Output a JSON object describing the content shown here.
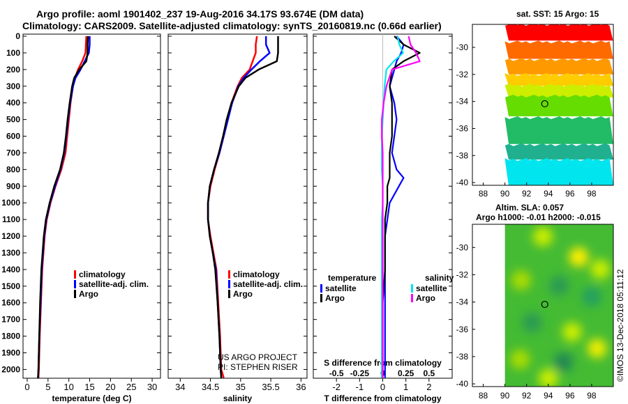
{
  "header": {
    "title_line1": "Argo profile: aoml 1901402_237 19-Aug-2016 34.17S 93.674E (DM data)",
    "title_line2": "Climatology: CARS2009. Satellite-adjusted climatology: synTS_20160819.nc (0.66d earlier)"
  },
  "depth_axis": {
    "ticks": [
      0,
      100,
      200,
      300,
      400,
      500,
      600,
      700,
      800,
      900,
      1000,
      1100,
      1200,
      1300,
      1400,
      1500,
      1600,
      1700,
      1800,
      1900,
      2000
    ]
  },
  "colors": {
    "climatology": "#ff0000",
    "satellite": "#0000ff",
    "argo": "#000000",
    "salt_sat": "#00e5ee",
    "salt_argo": "#ff00ff"
  },
  "chart_data": [
    {
      "type": "line",
      "name": "temperature",
      "xlabel": "temperature (deg C)",
      "ylabel": "depth",
      "xlim": [
        -1,
        32
      ],
      "ylim": [
        2060,
        0
      ],
      "xticks": [
        0,
        5,
        10,
        15,
        20,
        25,
        30
      ],
      "legend": [
        "climatology",
        "satellite-adj. clim.",
        "Argo"
      ],
      "series": [
        {
          "name": "climatology",
          "depth": [
            0,
            50,
            100,
            150,
            200,
            250,
            300,
            400,
            500,
            600,
            700,
            800,
            900,
            1000,
            1100,
            1200,
            1400,
            1600,
            1800,
            2000,
            2050
          ],
          "values": [
            14.2,
            14.1,
            14.0,
            13.2,
            12.2,
            11.5,
            11.0,
            10.4,
            10.0,
            9.6,
            9.2,
            8.2,
            6.8,
            5.6,
            4.7,
            4.2,
            3.6,
            3.3,
            3.0,
            2.8,
            2.7
          ]
        },
        {
          "name": "satellite-adj. clim.",
          "depth": [
            0,
            50,
            100,
            150,
            200,
            250,
            300,
            400,
            500,
            600,
            700,
            800,
            900,
            1000,
            1100,
            1200,
            1400,
            1600,
            1800,
            2000,
            2050
          ],
          "values": [
            15.0,
            15.0,
            14.8,
            13.8,
            12.8,
            11.6,
            11.0,
            10.3,
            9.8,
            9.4,
            8.9,
            8.0,
            6.7,
            5.5,
            4.6,
            4.1,
            3.5,
            3.2,
            2.9,
            2.7,
            2.6
          ]
        },
        {
          "name": "Argo",
          "depth": [
            0,
            50,
            100,
            150,
            200,
            250,
            300,
            400,
            500,
            600,
            700,
            800,
            900,
            1000,
            1100,
            1200,
            1400,
            1600,
            1800,
            2000,
            2050
          ],
          "values": [
            14.6,
            14.5,
            14.5,
            14.2,
            12.5,
            11.3,
            10.8,
            10.2,
            9.7,
            9.3,
            8.8,
            7.9,
            6.5,
            5.4,
            4.5,
            4.0,
            3.4,
            3.1,
            2.9,
            2.7,
            2.6
          ]
        }
      ]
    },
    {
      "type": "line",
      "name": "salinity",
      "xlabel": "salinity",
      "ylabel": "depth",
      "xlim": [
        33.8,
        36.1
      ],
      "ylim": [
        2060,
        0
      ],
      "xticks": [
        34,
        34.5,
        35,
        35.5,
        36
      ],
      "legend": [
        "climatology",
        "satellite-adj. clim.",
        "Argo"
      ],
      "series": [
        {
          "name": "climatology",
          "depth": [
            0,
            50,
            100,
            150,
            200,
            250,
            300,
            400,
            500,
            600,
            700,
            800,
            900,
            1000,
            1100,
            1200,
            1300,
            1400,
            1600,
            1800,
            2000,
            2050
          ],
          "values": [
            35.27,
            35.25,
            35.25,
            35.2,
            35.15,
            35.02,
            34.95,
            34.85,
            34.78,
            34.72,
            34.65,
            34.57,
            34.5,
            34.46,
            34.46,
            34.5,
            34.55,
            34.6,
            34.63,
            34.66,
            34.68,
            34.72
          ]
        },
        {
          "name": "satellite-adj. clim.",
          "depth": [
            0,
            50,
            100,
            150,
            200,
            250,
            300,
            400,
            500,
            600,
            700,
            800,
            900,
            1000,
            1100,
            1200,
            1300,
            1400,
            1600,
            1800,
            2000,
            2050
          ],
          "values": [
            35.42,
            35.42,
            35.48,
            35.32,
            35.18,
            35.05,
            34.96,
            34.86,
            34.79,
            34.72,
            34.65,
            34.56,
            34.49,
            34.46,
            34.46,
            34.49,
            34.54,
            34.59,
            34.62,
            34.65,
            34.67,
            34.68
          ]
        },
        {
          "name": "Argo",
          "depth": [
            0,
            50,
            100,
            150,
            200,
            250,
            300,
            400,
            500,
            600,
            700,
            800,
            900,
            1000,
            1100,
            1200,
            1300,
            1400,
            1600,
            1800,
            2000,
            2050
          ],
          "values": [
            35.62,
            35.62,
            35.62,
            35.6,
            35.3,
            35.08,
            34.97,
            34.85,
            34.77,
            34.71,
            34.64,
            34.56,
            34.49,
            34.46,
            34.46,
            34.49,
            34.54,
            34.58,
            34.62,
            34.65,
            34.67,
            34.68
          ]
        }
      ]
    },
    {
      "type": "line",
      "name": "difference from climatology",
      "xlabel": "T difference from climatology",
      "top_xlabel": "S difference from climatology",
      "ylabel": "depth",
      "xlim": [
        -3,
        3
      ],
      "ylim": [
        2060,
        0
      ],
      "xticks": [
        -2,
        -1,
        0,
        1,
        2
      ],
      "top_xticks": [
        "-0.5",
        "-0.25",
        "0",
        "0.25",
        "0.5"
      ],
      "top_xtick_values": [
        -0.5,
        -0.25,
        0,
        0.25,
        0.5
      ],
      "legend_left_title": "temperature",
      "legend_right_title": "salinity",
      "legend_left": [
        "satellite",
        "Argo"
      ],
      "legend_right": [
        "satellite",
        "Argo"
      ],
      "series": [
        {
          "name": "T satellite",
          "depth": [
            0,
            50,
            100,
            150,
            200,
            300,
            400,
            500,
            600,
            700,
            800,
            850,
            900,
            1000,
            1100,
            1200,
            1400,
            1600,
            1800,
            2000,
            2050
          ],
          "values": [
            0.6,
            0.9,
            0.8,
            0.6,
            0.5,
            0.3,
            0.5,
            0.6,
            0.5,
            0.4,
            0.6,
            0.9,
            0.7,
            0.3,
            0.2,
            0.1,
            0.1,
            0.1,
            0.1,
            0.1,
            0.1
          ]
        },
        {
          "name": "T Argo",
          "depth": [
            0,
            50,
            100,
            150,
            200,
            300,
            400,
            500,
            600,
            700,
            800,
            850,
            900,
            1000,
            1100,
            1200,
            1400,
            1600,
            1800,
            2000,
            2050
          ],
          "values": [
            0.5,
            0.9,
            1.6,
            0.9,
            0.4,
            0.3,
            0.4,
            0.4,
            0.4,
            0.3,
            0.3,
            0.3,
            0.2,
            0.2,
            0.1,
            0.1,
            0.1,
            0.0,
            0.0,
            0.0,
            0.0
          ]
        },
        {
          "name": "S satellite",
          "depth": [
            0,
            50,
            100,
            150,
            200,
            300,
            400,
            500,
            600,
            700,
            800,
            900,
            1000,
            1100,
            1200,
            1400,
            1600,
            1800,
            2000,
            2050
          ],
          "values": [
            0.16,
            0.18,
            0.22,
            0.12,
            0.04,
            0.02,
            0.01,
            0.0,
            -0.01,
            -0.01,
            -0.01,
            0.0,
            0.0,
            -0.01,
            -0.01,
            -0.01,
            -0.01,
            -0.01,
            -0.01,
            -0.01
          ]
        },
        {
          "name": "S Argo",
          "depth": [
            0,
            50,
            100,
            150,
            200,
            300,
            400,
            500,
            600,
            700,
            800,
            900,
            1000,
            1100,
            1200,
            1400,
            1600,
            1800,
            2000,
            2050
          ],
          "values": [
            0.28,
            0.3,
            0.36,
            0.4,
            0.1,
            0.04,
            0.01,
            -0.01,
            -0.01,
            0.0,
            0.0,
            0.0,
            0.0,
            0.0,
            0.0,
            0.0,
            0.0,
            0.0,
            0.0,
            0.0
          ]
        }
      ]
    },
    {
      "type": "heatmap",
      "name": "sst map",
      "title": "sat. SST: 15 Argo: 15",
      "xlim": [
        87,
        100
      ],
      "ylim": [
        -40.2,
        -28.3
      ],
      "xticks": [
        88,
        90,
        92,
        94,
        96,
        98
      ],
      "yticks": [
        -30,
        -32,
        -34,
        -36,
        -38,
        -40
      ],
      "marker": {
        "lon": 93.674,
        "lat": -34.17
      },
      "bands": [
        {
          "lat_from": -28.3,
          "lat_to": -29.6,
          "color": "#ff0000"
        },
        {
          "lat_from": -29.6,
          "lat_to": -30.9,
          "color": "#ff6a00"
        },
        {
          "lat_from": -30.9,
          "lat_to": -32.0,
          "color": "#ff9900"
        },
        {
          "lat_from": -32.0,
          "lat_to": -32.8,
          "color": "#ffcc00"
        },
        {
          "lat_from": -32.8,
          "lat_to": -33.6,
          "color": "#ccee00"
        },
        {
          "lat_from": -33.6,
          "lat_to": -35.2,
          "color": "#66dd00"
        },
        {
          "lat_from": -35.2,
          "lat_to": -37.2,
          "color": "#22bb66"
        },
        {
          "lat_from": -37.2,
          "lat_to": -38.3,
          "color": "#20b090"
        },
        {
          "lat_from": -38.3,
          "lat_to": -40.2,
          "color": "#00e5ee"
        }
      ]
    },
    {
      "type": "heatmap",
      "name": "sla map",
      "title_line1": "Altim. SLA: 0.057",
      "title_line2": "Argo h1000: -0.01 h2000: -0.015",
      "xlim": [
        87,
        100
      ],
      "ylim": [
        -40.2,
        -28.3
      ],
      "xticks": [
        88,
        90,
        92,
        94,
        96,
        98
      ],
      "yticks": [
        -30,
        -32,
        -34,
        -36,
        -38,
        -40
      ],
      "marker": {
        "lon": 93.674,
        "lat": -34.17
      },
      "background": "#44bb33",
      "blobs": [
        {
          "lon": 93.5,
          "lat": -29.2,
          "color": "#ccee00"
        },
        {
          "lon": 96.8,
          "lat": -30.7,
          "color": "#ffee00"
        },
        {
          "lon": 98.8,
          "lat": -31.6,
          "color": "#ccee00"
        },
        {
          "lon": 91.5,
          "lat": -32.4,
          "color": "#aadd00"
        },
        {
          "lon": 95.0,
          "lat": -32.8,
          "color": "#2a9a55"
        },
        {
          "lon": 98.0,
          "lat": -33.6,
          "color": "#22a060"
        },
        {
          "lon": 92.5,
          "lat": -35.5,
          "color": "#2a9a55"
        },
        {
          "lon": 96.2,
          "lat": -36.2,
          "color": "#ccee00"
        },
        {
          "lon": 98.5,
          "lat": -37.4,
          "color": "#eeee00"
        },
        {
          "lon": 91.4,
          "lat": -38.2,
          "color": "#aadd00"
        },
        {
          "lon": 95.4,
          "lat": -38.4,
          "color": "#228855"
        },
        {
          "lon": 94.0,
          "lat": -39.6,
          "color": "#ccee00"
        }
      ]
    }
  ],
  "credits": {
    "line1": "US ARGO PROJECT",
    "line2": "PI: STEPHEN RISER",
    "imos": "©IMOS 13-Dec-2018 05:11:12"
  }
}
